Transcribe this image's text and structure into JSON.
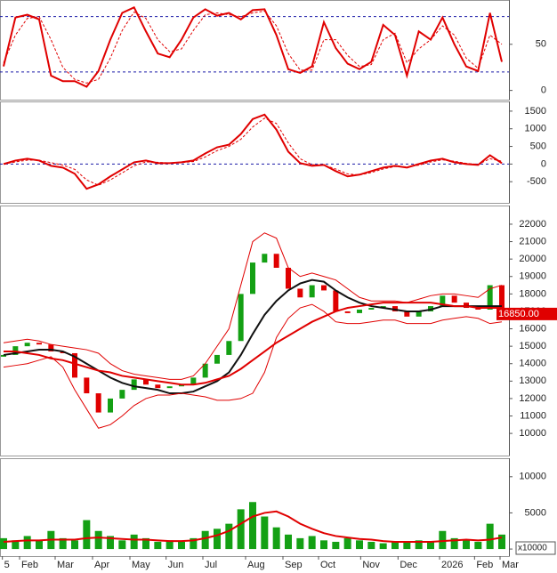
{
  "chart_data": [
    {
      "type": "line",
      "ylim": [
        -10,
        98
      ],
      "yticks": [
        0,
        50
      ],
      "ref_lines": [
        20,
        80
      ],
      "ref_color": "#1a1aa8",
      "xlim": [
        -0.3,
        42.6
      ],
      "x": [
        0,
        1,
        2,
        3,
        4,
        5,
        6,
        7,
        8,
        9,
        10,
        11,
        12,
        13,
        14,
        15,
        16,
        17,
        18,
        19,
        20,
        21,
        22,
        23,
        24,
        25,
        26,
        27,
        28,
        29,
        30,
        31,
        32,
        33,
        34,
        35,
        36,
        37,
        38,
        39,
        40,
        41,
        42
      ],
      "series": [
        {
          "color": "#e00000",
          "width": 2,
          "values": [
            26,
            79,
            82,
            77,
            16,
            10,
            10,
            4,
            21,
            55,
            84,
            90,
            64,
            40,
            36,
            55,
            79,
            88,
            81,
            84,
            77,
            87,
            88,
            60,
            23,
            19,
            26,
            74,
            46,
            29,
            23,
            31,
            71,
            60,
            16,
            64,
            55,
            79,
            50,
            26,
            21,
            84,
            31
          ]
        },
        {
          "color": "#e00000",
          "width": 1,
          "dash": true,
          "values": [
            30,
            60,
            78,
            80,
            55,
            25,
            12,
            8,
            12,
            35,
            65,
            85,
            78,
            55,
            42,
            45,
            65,
            82,
            84,
            82,
            80,
            84,
            86,
            70,
            40,
            22,
            22,
            55,
            55,
            38,
            26,
            28,
            55,
            62,
            30,
            45,
            55,
            70,
            60,
            35,
            24,
            60,
            50
          ]
        }
      ]
    },
    {
      "type": "line",
      "ylim": [
        -1100,
        1775
      ],
      "yticks": [
        -500,
        0,
        500,
        1000,
        1500
      ],
      "ref_lines": [
        0
      ],
      "ref_color": "#1a1aa8",
      "xlim": [
        -0.3,
        42.6
      ],
      "x": [
        0,
        1,
        2,
        3,
        4,
        5,
        6,
        7,
        8,
        9,
        10,
        11,
        12,
        13,
        14,
        15,
        16,
        17,
        18,
        19,
        20,
        21,
        22,
        23,
        24,
        25,
        26,
        27,
        28,
        29,
        30,
        31,
        32,
        33,
        34,
        35,
        36,
        37,
        38,
        39,
        40,
        41,
        42
      ],
      "series": [
        {
          "color": "#e00000",
          "width": 2,
          "values": [
            0,
            100,
            150,
            100,
            -50,
            -100,
            -275,
            -700,
            -575,
            -350,
            -150,
            50,
            100,
            25,
            25,
            50,
            100,
            300,
            475,
            550,
            850,
            1275,
            1400,
            975,
            350,
            25,
            -50,
            -25,
            -200,
            -350,
            -300,
            -200,
            -100,
            -50,
            -100,
            0,
            100,
            150,
            50,
            0,
            -25,
            250,
            25
          ]
        },
        {
          "color": "#e00000",
          "width": 1,
          "dash": true,
          "values": [
            0,
            60,
            110,
            110,
            40,
            -30,
            -150,
            -450,
            -600,
            -450,
            -250,
            -50,
            60,
            50,
            30,
            40,
            70,
            200,
            380,
            500,
            700,
            1050,
            1300,
            1150,
            600,
            150,
            -20,
            -30,
            -140,
            -280,
            -310,
            -240,
            -140,
            -70,
            -80,
            -30,
            60,
            120,
            80,
            20,
            -10,
            150,
            80
          ]
        }
      ]
    },
    {
      "type": "candlestick",
      "ylim": [
        8730,
        23070
      ],
      "yticks": [
        10000,
        11000,
        12000,
        13000,
        14000,
        15000,
        16000,
        17000,
        18000,
        19000,
        20000,
        21000,
        22000
      ],
      "xlim": [
        -0.3,
        42.6
      ],
      "up_color": "#14a014",
      "down_color": "#e00000",
      "x": [
        0,
        1,
        2,
        3,
        4,
        5,
        6,
        7,
        8,
        9,
        10,
        11,
        12,
        13,
        14,
        15,
        16,
        17,
        18,
        19,
        20,
        21,
        22,
        23,
        24,
        25,
        26,
        27,
        28,
        29,
        30,
        31,
        32,
        33,
        34,
        35,
        36,
        37,
        38,
        39,
        40,
        41,
        42
      ],
      "open": [
        14400,
        14500,
        15000,
        15200,
        15100,
        14700,
        14600,
        13200,
        12300,
        11200,
        12000,
        12500,
        13100,
        12800,
        12600,
        12700,
        12800,
        13200,
        14000,
        14500,
        15300,
        18000,
        19800,
        20300,
        19500,
        18300,
        17800,
        18500,
        18200,
        17000,
        16900,
        17100,
        17200,
        17300,
        17000,
        16700,
        17000,
        17300,
        17900,
        17500,
        17200,
        17100,
        18500
      ],
      "close": [
        14500,
        15000,
        15200,
        15100,
        14700,
        14600,
        13200,
        12300,
        11200,
        12000,
        12500,
        13100,
        12800,
        12600,
        12700,
        12800,
        13200,
        14000,
        14500,
        15300,
        18000,
        19800,
        20300,
        19500,
        18300,
        17800,
        18500,
        18200,
        17000,
        16900,
        17100,
        17200,
        17300,
        17000,
        16700,
        17000,
        17300,
        17900,
        17500,
        17200,
        17100,
        18500,
        16850
      ],
      "series": [
        {
          "color": "#111111",
          "width": 2,
          "values": [
            14500,
            14600,
            14700,
            14800,
            14800,
            14700,
            14400,
            14000,
            13600,
            13200,
            12900,
            12700,
            12600,
            12500,
            12300,
            12300,
            12400,
            12700,
            13000,
            13500,
            14500,
            15700,
            16800,
            17600,
            18200,
            18600,
            18800,
            18700,
            18200,
            17800,
            17500,
            17300,
            17200,
            17100,
            17000,
            17000,
            17100,
            17300,
            17300,
            17300,
            17300,
            17300,
            17300
          ]
        },
        {
          "color": "#e00000",
          "width": 2,
          "values": [
            14700,
            14700,
            14600,
            14500,
            14300,
            14200,
            14000,
            13800,
            13600,
            13500,
            13300,
            13200,
            13100,
            13000,
            12900,
            12800,
            12800,
            12900,
            13100,
            13300,
            13700,
            14200,
            14700,
            15200,
            15600,
            16000,
            16400,
            16700,
            17000,
            17200,
            17300,
            17400,
            17500,
            17500,
            17500,
            17500,
            17500,
            17400,
            17300,
            17300,
            17200,
            17200,
            17200
          ]
        },
        {
          "color": "#e00000",
          "width": 1,
          "values": [
            15200,
            15300,
            15400,
            15300,
            15100,
            15000,
            14900,
            14800,
            14600,
            14000,
            13600,
            13400,
            13300,
            13200,
            13100,
            13100,
            13300,
            14000,
            15000,
            16000,
            18500,
            21000,
            21500,
            21200,
            19500,
            19000,
            19200,
            19000,
            18800,
            18300,
            17800,
            17600,
            17600,
            17600,
            17500,
            17700,
            17900,
            18000,
            18000,
            17900,
            17800,
            18300,
            18500
          ]
        },
        {
          "color": "#e00000",
          "width": 1,
          "values": [
            13800,
            13900,
            14000,
            14200,
            14400,
            13800,
            12500,
            11400,
            10300,
            10500,
            11000,
            11600,
            12000,
            12200,
            12200,
            12300,
            12200,
            12100,
            11900,
            11900,
            12000,
            12300,
            13500,
            15500,
            16600,
            17200,
            17400,
            17000,
            16400,
            16300,
            16300,
            16400,
            16500,
            16500,
            16300,
            16300,
            16300,
            16500,
            16600,
            16700,
            16600,
            16300,
            16400
          ]
        }
      ],
      "price_tag": {
        "value": 16850,
        "label": "16850.00"
      }
    },
    {
      "type": "bar",
      "ylim": [
        -975,
        12560
      ],
      "yticks": [
        0,
        5000,
        10000
      ],
      "unit_label": "x10000",
      "color": "#14a014",
      "xlim": [
        -0.3,
        42.6
      ],
      "xticks": [
        {
          "value": -0.1,
          "label": "5"
        },
        {
          "value": 1.35,
          "label": "Feb"
        },
        {
          "value": 4.35,
          "label": "Mar"
        },
        {
          "value": 7.5,
          "label": "Apr"
        },
        {
          "value": 10.65,
          "label": "May"
        },
        {
          "value": 13.7,
          "label": "Jun"
        },
        {
          "value": 16.8,
          "label": "Jul"
        },
        {
          "value": 20.4,
          "label": "Aug"
        },
        {
          "value": 23.55,
          "label": "Sep"
        },
        {
          "value": 26.55,
          "label": "Oct"
        },
        {
          "value": 30.1,
          "label": "Nov"
        },
        {
          "value": 33.25,
          "label": "Dec"
        },
        {
          "value": 36.75,
          "label": "2026"
        },
        {
          "value": 39.7,
          "label": "Feb"
        },
        {
          "value": 41.85,
          "label": "Mar"
        }
      ],
      "x": [
        0,
        1,
        2,
        3,
        4,
        5,
        6,
        7,
        8,
        9,
        10,
        11,
        12,
        13,
        14,
        15,
        16,
        17,
        18,
        19,
        20,
        21,
        22,
        23,
        24,
        25,
        26,
        27,
        28,
        29,
        30,
        31,
        32,
        33,
        34,
        35,
        36,
        37,
        38,
        39,
        40,
        41,
        42
      ],
      "values": [
        1500,
        1200,
        1800,
        1300,
        2500,
        1500,
        1200,
        4000,
        2500,
        1800,
        1200,
        2000,
        1500,
        1000,
        1200,
        1000,
        1500,
        2500,
        2800,
        3500,
        5500,
        6500,
        4500,
        3000,
        2000,
        1500,
        1800,
        1200,
        1000,
        1500,
        1200,
        1000,
        800,
        1000,
        900,
        1200,
        1000,
        2500,
        1500,
        1200,
        1000,
        3500,
        2000
      ],
      "series": [
        {
          "color": "#e00000",
          "width": 2,
          "values": [
            1000,
            1100,
            1200,
            1200,
            1300,
            1300,
            1300,
            1500,
            1600,
            1500,
            1400,
            1300,
            1300,
            1200,
            1100,
            1100,
            1200,
            1500,
            1900,
            2500,
            3500,
            4500,
            5000,
            5200,
            4500,
            3500,
            2800,
            2200,
            1800,
            1600,
            1400,
            1300,
            1100,
            1000,
            1000,
            1000,
            1000,
            1100,
            1200,
            1300,
            1200,
            1300,
            1600
          ]
        }
      ]
    }
  ]
}
